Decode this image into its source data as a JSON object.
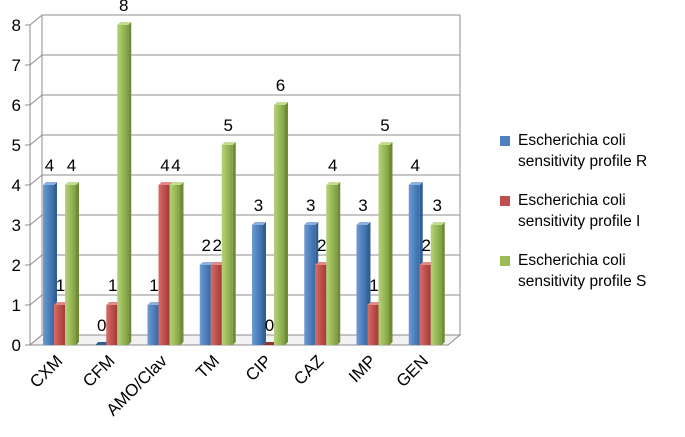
{
  "chart_data": {
    "type": "bar",
    "title": "",
    "xlabel": "",
    "ylabel": "",
    "ylim": [
      0,
      8
    ],
    "yticks": [
      "0",
      "1",
      "2",
      "3",
      "4",
      "5",
      "6",
      "7",
      "8"
    ],
    "grid": true,
    "legend_position": "right",
    "categories": [
      "CXM",
      "CFM",
      "AMO/Clav",
      "TM",
      "CIP",
      "CAZ",
      "IMP",
      "GEN"
    ],
    "series": [
      {
        "name": "Escherichia coli sensitivity profile R",
        "color": "#4F81BD",
        "values": [
          4,
          0,
          1,
          2,
          3,
          3,
          3,
          4
        ],
        "labels": [
          "4",
          "0",
          "1",
          "2",
          "3",
          "3",
          "3",
          "4"
        ]
      },
      {
        "name": "Escherichia coli sensitivity profile I",
        "color": "#C0504D",
        "values": [
          1,
          1,
          4,
          2,
          0,
          2,
          1,
          2
        ],
        "labels": [
          "1",
          "1",
          "4",
          "2",
          "0",
          "2",
          "1",
          "2"
        ]
      },
      {
        "name": "Escherichia coli sensitivity profile S",
        "color": "#9BBB59",
        "values": [
          4,
          8,
          4,
          5,
          6,
          4,
          5,
          3
        ],
        "labels": [
          "4",
          "8",
          "4",
          "5",
          "6",
          "4",
          "5",
          "3"
        ]
      }
    ]
  }
}
